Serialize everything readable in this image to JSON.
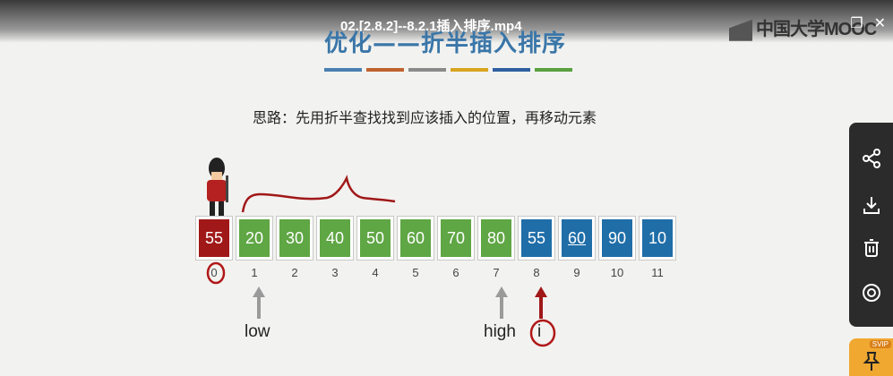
{
  "video": {
    "title": "02.[2.8.2]--8.2.1插入排序.mp4"
  },
  "brand": {
    "logo_text": "中国大学MOOC"
  },
  "window": {
    "restore_symbol": "❐",
    "close_symbol": "✕"
  },
  "slide": {
    "title": "优化——折半插入排序",
    "idea": "思路：先用折半查找找到应该插入的位置，再移动元素",
    "bar_colors": [
      "#4a7fb0",
      "#c0622e",
      "#8a8a8a",
      "#d9a520",
      "#2f5fa0",
      "#5aa040"
    ],
    "array": [
      {
        "index": "0",
        "value": "55",
        "color": "#a01818"
      },
      {
        "index": "1",
        "value": "20",
        "color": "#5fa644"
      },
      {
        "index": "2",
        "value": "30",
        "color": "#5fa644"
      },
      {
        "index": "3",
        "value": "40",
        "color": "#5fa644"
      },
      {
        "index": "4",
        "value": "50",
        "color": "#5fa644"
      },
      {
        "index": "5",
        "value": "60",
        "color": "#5fa644"
      },
      {
        "index": "6",
        "value": "70",
        "color": "#5fa644"
      },
      {
        "index": "7",
        "value": "80",
        "color": "#5fa644"
      },
      {
        "index": "8",
        "value": "55",
        "color": "#1f6ea8"
      },
      {
        "index": "9",
        "value": "60",
        "color": "#1f6ea8"
      },
      {
        "index": "10",
        "value": "90",
        "color": "#1f6ea8"
      },
      {
        "index": "11",
        "value": "10",
        "color": "#1f6ea8"
      }
    ],
    "pointers": {
      "low": "low",
      "high": "high",
      "i": "i"
    }
  },
  "side_panel": {
    "buttons": [
      "share-icon",
      "download-icon",
      "delete-icon",
      "view-icon"
    ],
    "svip_badge": "SVIP"
  }
}
